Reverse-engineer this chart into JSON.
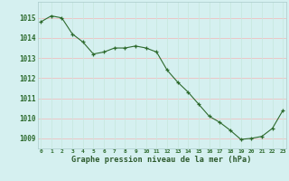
{
  "x": [
    0,
    1,
    2,
    3,
    4,
    5,
    6,
    7,
    8,
    9,
    10,
    11,
    12,
    13,
    14,
    15,
    16,
    17,
    18,
    19,
    20,
    21,
    22,
    23
  ],
  "y": [
    1014.8,
    1015.1,
    1015.0,
    1014.2,
    1013.8,
    1013.2,
    1013.3,
    1013.5,
    1013.5,
    1013.6,
    1013.5,
    1013.3,
    1012.4,
    1011.8,
    1011.3,
    1010.7,
    1010.1,
    1009.8,
    1009.4,
    1008.95,
    1009.0,
    1009.1,
    1009.5,
    1010.4
  ],
  "line_color": "#2d6a2d",
  "marker": "+",
  "bg_color": "#d5f0f0",
  "grid_color_v": "#c8e8e0",
  "grid_color_h": "#f0c0c0",
  "xlabel": "Graphe pression niveau de la mer (hPa)",
  "xlabel_color": "#2d5a2d",
  "ylim_min": 1008.5,
  "ylim_max": 1015.8,
  "yticks": [
    1009,
    1010,
    1011,
    1012,
    1013,
    1014,
    1015
  ],
  "tick_color": "#2d6a2d"
}
